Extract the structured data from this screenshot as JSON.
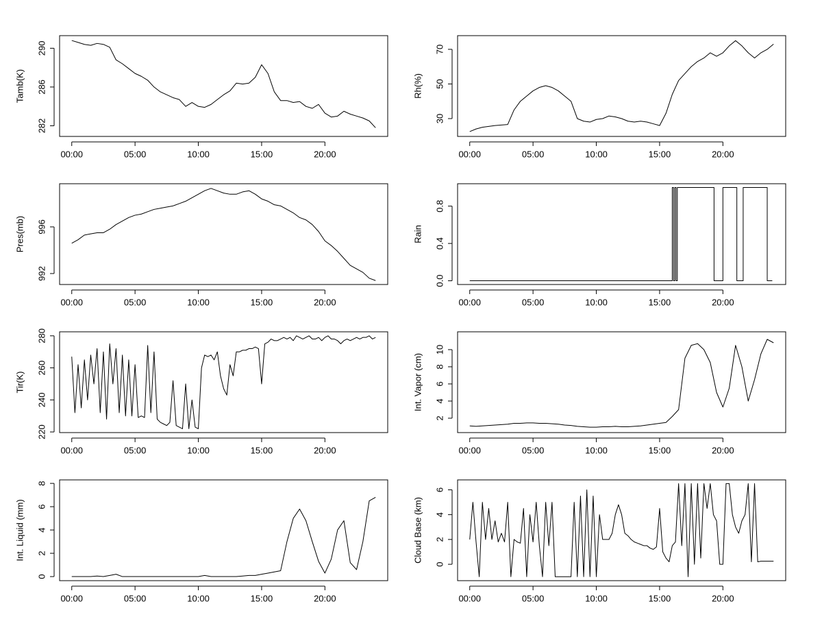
{
  "chart_data": [
    {
      "type": "line",
      "ylabel": "Tamb(K)",
      "color": "#000000",
      "x": [
        0,
        0.5,
        1,
        1.5,
        2,
        2.5,
        3,
        3.5,
        4,
        4.5,
        5,
        5.5,
        6,
        6.5,
        7,
        7.5,
        8,
        8.5,
        9,
        9.5,
        10,
        10.5,
        11,
        11.5,
        12,
        12.5,
        13,
        13.5,
        14,
        14.5,
        15,
        15.5,
        16,
        16.5,
        17,
        17.5,
        18,
        18.5,
        19,
        19.5,
        20,
        20.5,
        21,
        21.5,
        22,
        22.5,
        23,
        23.5,
        24
      ],
      "values": [
        290.8,
        290.6,
        290.4,
        290.3,
        290.5,
        290.4,
        290.1,
        288.8,
        288.4,
        287.9,
        287.4,
        287.1,
        286.7,
        286.0,
        285.5,
        285.2,
        284.9,
        284.7,
        284.0,
        284.4,
        284.0,
        283.9,
        284.2,
        284.7,
        285.2,
        285.6,
        286.4,
        286.3,
        286.4,
        287.0,
        288.3,
        287.4,
        285.5,
        284.6,
        284.6,
        284.4,
        284.5,
        284.0,
        283.8,
        284.2,
        283.3,
        282.9,
        283.0,
        283.5,
        283.2,
        283.0,
        282.8,
        282.5,
        281.8
      ],
      "xlim": [
        -0.96,
        24.96
      ],
      "ylim": [
        280.9,
        291.3
      ],
      "yticks": [
        282,
        286,
        290
      ],
      "xticks": [
        {
          "value": 0,
          "label": "00:00"
        },
        {
          "value": 5,
          "label": "05:00"
        },
        {
          "value": 10,
          "label": "10:00"
        },
        {
          "value": 15,
          "label": "15:00"
        },
        {
          "value": 20,
          "label": "20:00"
        }
      ]
    },
    {
      "type": "line",
      "ylabel": "Rh(%)",
      "color": "#000000",
      "x": [
        0,
        0.5,
        1,
        1.5,
        2,
        2.5,
        3,
        3.5,
        4,
        4.5,
        5,
        5.5,
        6,
        6.5,
        7,
        7.5,
        8,
        8.5,
        9,
        9.5,
        10,
        10.5,
        11,
        11.5,
        12,
        12.5,
        13,
        13.5,
        14,
        14.5,
        15,
        15.5,
        16,
        16.5,
        17,
        17.5,
        18,
        18.5,
        19,
        19.5,
        20,
        20.5,
        21,
        21.5,
        22,
        22.5,
        23,
        23.5,
        24
      ],
      "values": [
        22.5,
        24,
        25,
        25.5,
        26,
        26.3,
        26.6,
        35,
        40,
        43,
        46,
        48,
        49,
        48,
        46,
        43,
        40,
        30,
        28.5,
        28,
        29.5,
        30,
        31.5,
        31,
        30,
        28.5,
        28,
        28.5,
        28,
        27,
        26,
        33,
        44,
        52,
        56,
        60,
        63,
        65,
        68,
        66,
        68,
        72,
        75,
        72,
        68,
        65,
        68,
        70,
        73
      ],
      "xlim": [
        -0.96,
        24.96
      ],
      "ylim": [
        19.7,
        77.9
      ],
      "yticks": [
        30,
        50,
        70
      ],
      "xticks": [
        {
          "value": 0,
          "label": "00:00"
        },
        {
          "value": 5,
          "label": "05:00"
        },
        {
          "value": 10,
          "label": "10:00"
        },
        {
          "value": 15,
          "label": "15:00"
        },
        {
          "value": 20,
          "label": "20:00"
        }
      ]
    },
    {
      "type": "line",
      "ylabel": "Pres(mb)",
      "color": "#000000",
      "x": [
        0,
        0.5,
        1,
        1.5,
        2,
        2.5,
        3,
        3.5,
        4,
        4.5,
        5,
        5.5,
        6,
        6.5,
        7,
        7.5,
        8,
        8.5,
        9,
        9.5,
        10,
        10.5,
        11,
        11.5,
        12,
        12.5,
        13,
        13.5,
        14,
        14.5,
        15,
        15.5,
        16,
        16.5,
        17,
        17.5,
        18,
        18.5,
        19,
        19.5,
        20,
        20.5,
        21,
        21.5,
        22,
        22.5,
        23,
        23.5,
        24
      ],
      "values": [
        994.6,
        994.9,
        995.3,
        995.4,
        995.5,
        995.5,
        995.8,
        996.2,
        996.5,
        996.8,
        997.0,
        997.1,
        997.3,
        997.5,
        997.6,
        997.7,
        997.8,
        998.0,
        998.2,
        998.5,
        998.8,
        999.1,
        999.3,
        999.1,
        998.9,
        998.8,
        998.8,
        999.0,
        999.1,
        998.8,
        998.4,
        998.2,
        997.9,
        997.8,
        997.5,
        997.2,
        996.8,
        996.6,
        996.2,
        995.6,
        994.8,
        994.4,
        993.9,
        993.3,
        992.7,
        992.4,
        992.1,
        991.6,
        991.4
      ],
      "xlim": [
        -0.96,
        24.96
      ],
      "ylim": [
        991.06,
        999.7
      ],
      "yticks": [
        992,
        996
      ],
      "xticks": [
        {
          "value": 0,
          "label": "00:00"
        },
        {
          "value": 5,
          "label": "05:00"
        },
        {
          "value": 10,
          "label": "10:00"
        },
        {
          "value": 15,
          "label": "15:00"
        },
        {
          "value": 20,
          "label": "20:00"
        }
      ]
    },
    {
      "type": "line",
      "ylabel": "Rain",
      "color": "#000000",
      "x": [
        0,
        16,
        16,
        16.1,
        16.1,
        16.2,
        16.2,
        16.3,
        16.3,
        16.4,
        16.4,
        19.3,
        19.3,
        20,
        20,
        21.1,
        21.1,
        21.6,
        21.6,
        23.5,
        23.5,
        23.9
      ],
      "values": [
        0,
        0,
        1,
        1,
        0,
        0,
        1,
        1,
        0,
        0,
        1,
        1,
        0,
        0,
        1,
        1,
        0,
        0,
        1,
        1,
        0,
        0
      ],
      "xlim": [
        -0.96,
        24.96
      ],
      "ylim": [
        -0.04,
        1.04
      ],
      "yticks": [
        {
          "value": 0,
          "label": "0.0"
        },
        {
          "value": 0.4,
          "label": "0.4"
        },
        {
          "value": 0.8,
          "label": "0.8"
        }
      ],
      "xticks": [
        {
          "value": 0,
          "label": "00:00"
        },
        {
          "value": 5,
          "label": "05:00"
        },
        {
          "value": 10,
          "label": "10:00"
        },
        {
          "value": 15,
          "label": "15:00"
        },
        {
          "value": 20,
          "label": "20:00"
        }
      ]
    },
    {
      "type": "line",
      "ylabel": "Tir(K)",
      "color": "#000000",
      "x": [
        0,
        0.25,
        0.5,
        0.75,
        1,
        1.25,
        1.5,
        1.75,
        2,
        2.25,
        2.5,
        2.75,
        3,
        3.25,
        3.5,
        3.75,
        4,
        4.25,
        4.5,
        4.75,
        5,
        5.25,
        5.5,
        5.75,
        6,
        6.25,
        6.5,
        6.75,
        7,
        7.25,
        7.5,
        7.75,
        8,
        8.25,
        8.5,
        8.75,
        9,
        9.25,
        9.5,
        9.75,
        10,
        10.25,
        10.5,
        10.75,
        11,
        11.25,
        11.5,
        11.75,
        12,
        12.25,
        12.5,
        12.75,
        13,
        13.25,
        13.5,
        13.75,
        14,
        14.25,
        14.5,
        14.75,
        15,
        15.25,
        15.5,
        15.75,
        16,
        16.25,
        16.5,
        16.75,
        17,
        17.25,
        17.5,
        17.75,
        18,
        18.25,
        18.5,
        18.75,
        19,
        19.25,
        19.5,
        19.75,
        20,
        20.25,
        20.5,
        20.75,
        21,
        21.25,
        21.5,
        21.75,
        22,
        22.25,
        22.5,
        22.75,
        23,
        23.25,
        23.5,
        23.75,
        24
      ],
      "values": [
        267,
        232,
        262,
        235,
        265,
        240,
        268,
        250,
        272,
        232,
        270,
        228,
        275,
        250,
        272,
        232,
        268,
        230,
        265,
        230,
        262,
        229,
        230,
        229,
        274,
        232,
        270,
        228,
        226,
        225,
        224,
        226,
        252,
        224,
        223,
        222,
        250,
        222,
        240,
        223,
        222,
        260,
        268,
        267,
        268,
        265,
        270,
        255,
        247,
        243,
        262,
        255,
        270,
        270,
        271,
        271,
        272,
        272,
        273,
        272,
        250,
        275,
        276,
        278,
        277,
        277,
        278,
        279,
        278,
        279,
        277,
        280,
        279,
        278,
        279,
        280,
        278,
        278,
        279,
        277,
        279,
        280,
        278,
        278,
        277,
        275,
        277,
        278,
        277,
        278,
        279,
        278,
        279,
        279,
        280,
        278,
        279
      ],
      "xlim": [
        -0.96,
        24.96
      ],
      "ylim": [
        219.6,
        282.5
      ],
      "yticks": [
        220,
        240,
        260,
        280
      ],
      "xticks": [
        {
          "value": 0,
          "label": "00:00"
        },
        {
          "value": 5,
          "label": "05:00"
        },
        {
          "value": 10,
          "label": "10:00"
        },
        {
          "value": 15,
          "label": "15:00"
        },
        {
          "value": 20,
          "label": "20:00"
        }
      ]
    },
    {
      "type": "line",
      "ylabel": "Int. Vapor (cm)",
      "color": "#000000",
      "x": [
        0,
        0.5,
        1,
        1.5,
        2,
        2.5,
        3,
        3.5,
        4,
        4.5,
        5,
        5.5,
        6,
        6.5,
        7,
        7.5,
        8,
        8.5,
        9,
        9.5,
        10,
        10.5,
        11,
        11.5,
        12,
        12.5,
        13,
        13.5,
        14,
        14.5,
        15,
        15.5,
        16,
        16.5,
        17,
        17.5,
        18,
        18.5,
        19,
        19.5,
        20,
        20.5,
        21,
        21.5,
        22,
        22.5,
        23,
        23.5,
        24
      ],
      "values": [
        1.1,
        1.05,
        1.1,
        1.15,
        1.2,
        1.25,
        1.3,
        1.4,
        1.4,
        1.45,
        1.45,
        1.4,
        1.4,
        1.35,
        1.3,
        1.2,
        1.15,
        1.05,
        1.0,
        0.95,
        0.95,
        1.0,
        1.0,
        1.05,
        1.0,
        1.0,
        1.05,
        1.1,
        1.2,
        1.3,
        1.4,
        1.5,
        2.2,
        3.0,
        9.0,
        10.5,
        10.7,
        10.0,
        8.5,
        5.0,
        3.3,
        5.5,
        10.5,
        8.0,
        4.0,
        6.5,
        9.5,
        11.2,
        10.8
      ],
      "xlim": [
        -0.96,
        24.96
      ],
      "ylim": [
        0.32,
        12.08
      ],
      "yticks": [
        2,
        4,
        6,
        8,
        10
      ],
      "xticks": [
        {
          "value": 0,
          "label": "00:00"
        },
        {
          "value": 5,
          "label": "05:00"
        },
        {
          "value": 10,
          "label": "10:00"
        },
        {
          "value": 15,
          "label": "15:00"
        },
        {
          "value": 20,
          "label": "20:00"
        }
      ]
    },
    {
      "type": "line",
      "ylabel": "Int. Liquid (mm)",
      "color": "#000000",
      "x": [
        0,
        0.5,
        1,
        1.5,
        2,
        2.5,
        3,
        3.5,
        4,
        4.5,
        5,
        5.5,
        6,
        6.5,
        7,
        7.5,
        8,
        8.5,
        9,
        9.5,
        10,
        10.5,
        11,
        11.5,
        12,
        12.5,
        13,
        13.5,
        14,
        14.5,
        15,
        15.5,
        16,
        16.5,
        17,
        17.5,
        18,
        18.5,
        19,
        19.5,
        20,
        20.5,
        21,
        21.5,
        22,
        22.5,
        23,
        23.5,
        24
      ],
      "values": [
        0,
        0,
        0,
        0,
        0.05,
        0,
        0.1,
        0.2,
        0,
        0,
        0,
        0,
        0,
        0,
        0,
        0,
        0,
        0,
        0,
        0,
        0,
        0.1,
        0,
        0,
        0,
        0,
        0,
        0.05,
        0.1,
        0.1,
        0.2,
        0.3,
        0.4,
        0.5,
        3,
        5,
        5.8,
        4.8,
        3,
        1.3,
        0.3,
        1.5,
        4,
        4.8,
        1.2,
        0.6,
        3,
        6.5,
        6.8
      ],
      "xlim": [
        -0.96,
        24.96
      ],
      "ylim": [
        -0.35,
        8.3
      ],
      "yticks": [
        0,
        2,
        4,
        6,
        8
      ],
      "xticks": [
        {
          "value": 0,
          "label": "00:00"
        },
        {
          "value": 5,
          "label": "05:00"
        },
        {
          "value": 10,
          "label": "10:00"
        },
        {
          "value": 15,
          "label": "15:00"
        },
        {
          "value": 20,
          "label": "20:00"
        }
      ]
    },
    {
      "type": "line",
      "ylabel": "Cloud Base (km)",
      "color": "#000000",
      "x": [
        0,
        0.25,
        0.5,
        0.75,
        1,
        1.25,
        1.5,
        1.75,
        2,
        2.25,
        2.5,
        2.75,
        3,
        3.25,
        3.5,
        3.75,
        4,
        4.25,
        4.5,
        4.75,
        5,
        5.25,
        5.5,
        5.75,
        6,
        6.25,
        6.5,
        6.75,
        7,
        7.25,
        7.5,
        7.75,
        8,
        8.25,
        8.5,
        8.75,
        9,
        9.25,
        9.5,
        9.75,
        10,
        10.25,
        10.5,
        10.75,
        11,
        11.25,
        11.5,
        11.75,
        12,
        12.25,
        12.5,
        12.75,
        13,
        13.25,
        13.5,
        13.75,
        14,
        14.25,
        14.5,
        14.75,
        15,
        15.25,
        15.5,
        15.75,
        16,
        16.25,
        16.5,
        16.75,
        17,
        17.25,
        17.5,
        17.75,
        18,
        18.25,
        18.5,
        18.75,
        19,
        19.25,
        19.5,
        19.75,
        20,
        20.25,
        20.5,
        20.75,
        21,
        21.25,
        21.5,
        21.75,
        22,
        22.25,
        22.5,
        22.75,
        23,
        23.25,
        23.5,
        23.75,
        24
      ],
      "values": [
        2,
        5,
        1.8,
        -1,
        5,
        2,
        4.5,
        2,
        3.5,
        1.8,
        2.5,
        1.8,
        5,
        -1,
        2,
        1.8,
        1.7,
        4.5,
        -1,
        4,
        1.8,
        5,
        1.5,
        -1,
        5,
        1.5,
        5,
        -1,
        -1,
        -1,
        -1,
        -1,
        -1,
        5,
        -1,
        5.5,
        -1,
        6,
        -1,
        5.5,
        -1,
        4,
        2,
        2,
        2,
        2.5,
        4,
        4.8,
        4,
        2.5,
        2.3,
        2,
        1.8,
        1.7,
        1.6,
        1.5,
        1.5,
        1.3,
        1.2,
        1.4,
        4.5,
        1,
        0.5,
        0.2,
        1.5,
        1.8,
        6.5,
        1.5,
        6.5,
        -1,
        6.5,
        0,
        6.5,
        0.5,
        6.5,
        4.5,
        6.5,
        4,
        3.5,
        0,
        0,
        6.5,
        6.5,
        4,
        3,
        2.5,
        3.5,
        4,
        6.5,
        0.2,
        6.5,
        0.2,
        0.25,
        0.25,
        0.25,
        0.25,
        0.25
      ],
      "xlim": [
        -0.96,
        24.96
      ],
      "ylim": [
        -1.32,
        6.8
      ],
      "yticks": [
        0,
        2,
        4,
        6
      ],
      "xticks": [
        {
          "value": 0,
          "label": "00:00"
        },
        {
          "value": 5,
          "label": "05:00"
        },
        {
          "value": 10,
          "label": "10:00"
        },
        {
          "value": 15,
          "label": "15:00"
        },
        {
          "value": 20,
          "label": "20:00"
        }
      ]
    }
  ]
}
